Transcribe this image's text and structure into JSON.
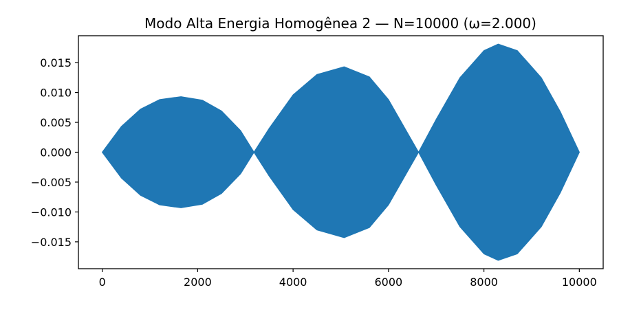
{
  "chart_data": {
    "type": "area",
    "title": "Modo Alta Energia Homogênea 2 — N=10000 (ω=2.000)",
    "xlabel": "",
    "ylabel": "",
    "xlim": [
      -500,
      10500
    ],
    "ylim": [
      -0.0195,
      0.0195
    ],
    "grid": false,
    "legend": "none",
    "xticks": [
      0,
      2000,
      4000,
      6000,
      8000,
      10000
    ],
    "xtick_labels": [
      "0",
      "2000",
      "4000",
      "6000",
      "8000",
      "10000"
    ],
    "yticks": [
      0.015,
      0.01,
      0.005,
      0.0,
      -0.005,
      -0.01,
      -0.015
    ],
    "ytick_labels": [
      "0.015",
      "0.010",
      "0.005",
      "0.000",
      "−0.005",
      "−0.010",
      "−0.015"
    ],
    "series": [
      {
        "color": "#1f77b4",
        "x": [
          0,
          400,
          800,
          1200,
          1650,
          2100,
          2500,
          2900,
          3180,
          3500,
          4000,
          4500,
          5070,
          5600,
          6000,
          6400,
          6630,
          7000,
          7500,
          8000,
          8300,
          8700,
          9200,
          9600,
          10000
        ],
        "upper_envelope": [
          0,
          0.0043,
          0.0072,
          0.0088,
          0.0093,
          0.0087,
          0.0069,
          0.0036,
          0,
          0.004,
          0.0096,
          0.013,
          0.0143,
          0.0126,
          0.0088,
          0.0032,
          0,
          0.0055,
          0.0125,
          0.017,
          0.0181,
          0.017,
          0.0125,
          0.0068,
          0
        ],
        "lower_envelope": [
          0,
          -0.0043,
          -0.0072,
          -0.0088,
          -0.0093,
          -0.0087,
          -0.0069,
          -0.0036,
          0,
          -0.004,
          -0.0096,
          -0.013,
          -0.0143,
          -0.0126,
          -0.0088,
          -0.0032,
          0,
          -0.0055,
          -0.0125,
          -0.017,
          -0.0181,
          -0.017,
          -0.0125,
          -0.0068,
          0
        ]
      }
    ]
  }
}
